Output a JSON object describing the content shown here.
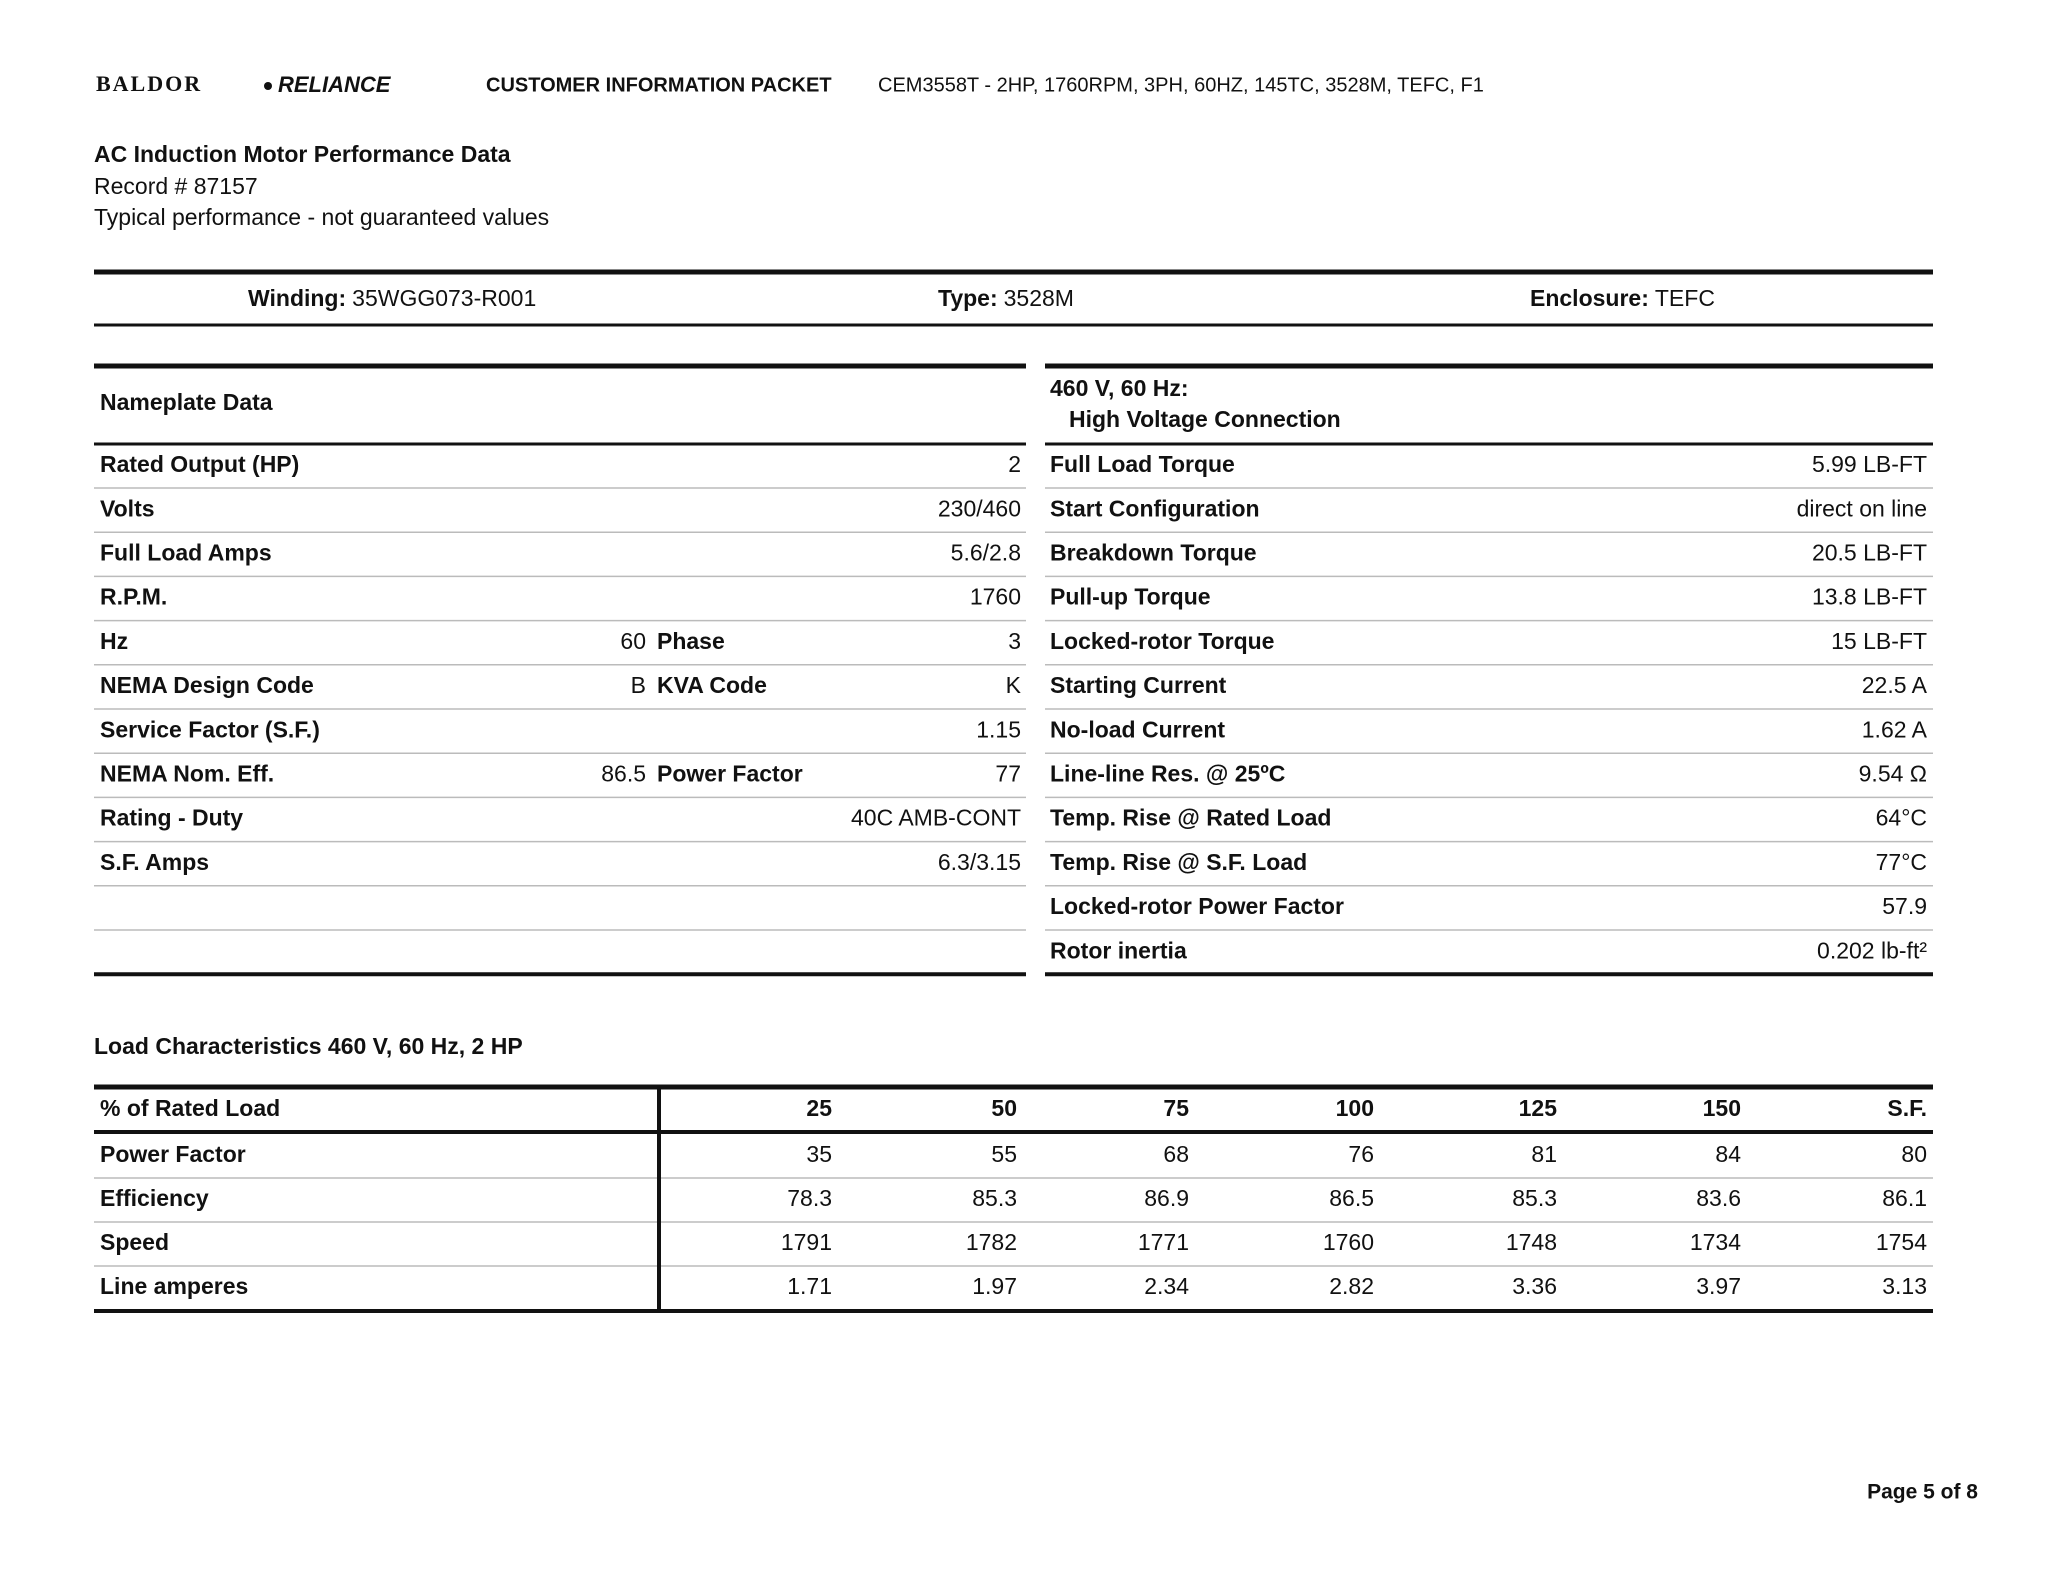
{
  "header": {
    "logo": [
      "BALDOR",
      "RELIANCE"
    ],
    "packet": "CUSTOMER INFORMATION PACKET",
    "description": "CEM3558T - 2HP, 1760RPM, 3PH, 60HZ, 145TC, 3528M, TEFC, F1"
  },
  "intro": {
    "title": "AC Induction Motor Performance Data",
    "record": "Record # 87157",
    "note": "Typical performance - not guaranteed values"
  },
  "info": [
    {
      "label": "Winding:",
      "value": "35WGG073-R001"
    },
    {
      "label": "Type:",
      "value": "3528M"
    },
    {
      "label": "Enclosure:",
      "value": "TEFC"
    }
  ],
  "nameplate": {
    "heading": "Nameplate Data",
    "rows": [
      [
        "Rated Output (HP)",
        "2"
      ],
      [
        "Volts",
        "230/460"
      ],
      [
        "Full Load Amps",
        "5.6/2.8"
      ],
      [
        "R.P.M.",
        "1760"
      ],
      [
        "Hz",
        "60",
        "Phase",
        "3"
      ],
      [
        "NEMA Design Code",
        "B",
        "KVA Code",
        "K"
      ],
      [
        "Service Factor (S.F.)",
        "1.15"
      ],
      [
        "NEMA Nom. Eff.",
        "86.5",
        "Power Factor",
        "77"
      ],
      [
        "Rating - Duty",
        "40C AMB-CONT"
      ],
      [
        "S.F. Amps",
        "6.3/3.15"
      ]
    ]
  },
  "connection": {
    "heading": [
      "460 V, 60 Hz:",
      "High Voltage Connection"
    ],
    "rows": [
      [
        "Full Load Torque",
        "5.99 LB-FT"
      ],
      [
        "Start Configuration",
        "direct on line"
      ],
      [
        "Breakdown Torque",
        "20.5 LB-FT"
      ],
      [
        "Pull-up Torque",
        "13.8 LB-FT"
      ],
      [
        "Locked-rotor Torque",
        "15 LB-FT"
      ],
      [
        "Starting Current",
        "22.5 A"
      ],
      [
        "No-load Current",
        "1.62 A"
      ],
      [
        "Line-line Res. @ 25ºC",
        "9.54 Ω"
      ],
      [
        "Temp. Rise @ Rated Load",
        "64°C"
      ],
      [
        "Temp. Rise @ S.F. Load",
        "77°C"
      ],
      [
        "Locked-rotor Power Factor",
        "57.9"
      ],
      [
        "Rotor inertia",
        "0.202 lb-ft²"
      ]
    ]
  },
  "load": {
    "title": "Load Characteristics 460 V, 60 Hz, 2 HP",
    "header": [
      "% of Rated Load",
      "25",
      "50",
      "75",
      "100",
      "125",
      "150",
      "S.F."
    ],
    "rows": [
      [
        "Power Factor",
        "35",
        "55",
        "68",
        "76",
        "81",
        "84",
        "80"
      ],
      [
        "Efficiency",
        "78.3",
        "85.3",
        "86.9",
        "86.5",
        "85.3",
        "83.6",
        "86.1"
      ],
      [
        "Speed",
        "1791",
        "1782",
        "1771",
        "1760",
        "1748",
        "1734",
        "1754"
      ],
      [
        "Line amperes",
        "1.71",
        "1.97",
        "2.34",
        "2.82",
        "3.36",
        "3.97",
        "3.13"
      ]
    ]
  },
  "footer": {
    "page": "Page 5 of 8"
  }
}
